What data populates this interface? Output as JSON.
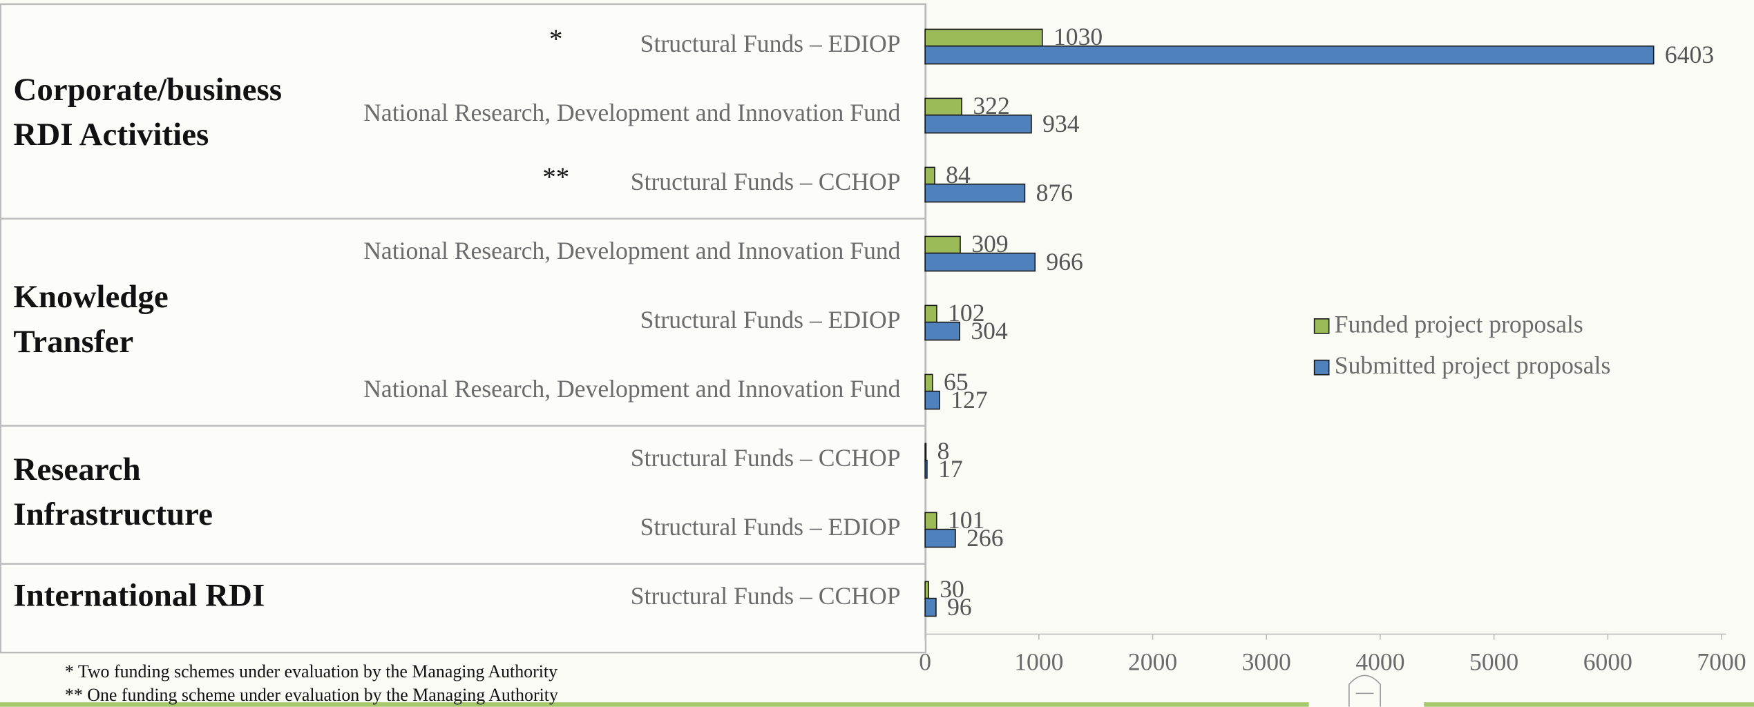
{
  "chart_data": {
    "type": "bar",
    "orientation": "horizontal",
    "categories": [
      "Structural Funds – EDIOP",
      "National Research, Development and Innovation Fund",
      "Structural Funds – CCHOP",
      "National Research, Development and Innovation Fund",
      "Structural Funds – EDIOP",
      "National Research, Development and Innovation Fund",
      "Structural Funds – CCHOP",
      "Structural Funds – EDIOP",
      "Structural Funds – CCHOP"
    ],
    "category_notes": [
      "*",
      null,
      "**",
      null,
      null,
      null,
      null,
      null,
      null
    ],
    "groups": [
      {
        "label_lines": [
          "Corporate/business",
          "RDI Activities"
        ],
        "span": 3
      },
      {
        "label_lines": [
          "Knowledge",
          "Transfer"
        ],
        "span": 3
      },
      {
        "label_lines": [
          "Research",
          "Infrastructure"
        ],
        "span": 2
      },
      {
        "label_lines": [
          "International RDI"
        ],
        "span": 1
      }
    ],
    "series": [
      {
        "name": "Funded project proposals",
        "color": "#9bbb59",
        "values": [
          1030,
          322,
          84,
          309,
          102,
          65,
          8,
          101,
          30
        ]
      },
      {
        "name": "Submitted project proposals",
        "color": "#4f81bd",
        "values": [
          6403,
          934,
          876,
          966,
          304,
          127,
          17,
          266,
          96
        ]
      }
    ],
    "xlim": [
      0,
      7000
    ],
    "xticks": [
      0,
      1000,
      2000,
      3000,
      4000,
      5000,
      6000,
      7000
    ],
    "legend": "right",
    "footnotes": [
      "* Two funding schemes under evaluation by the Managing Authority",
      "** One funding scheme under evaluation by the Managing Authority"
    ]
  }
}
